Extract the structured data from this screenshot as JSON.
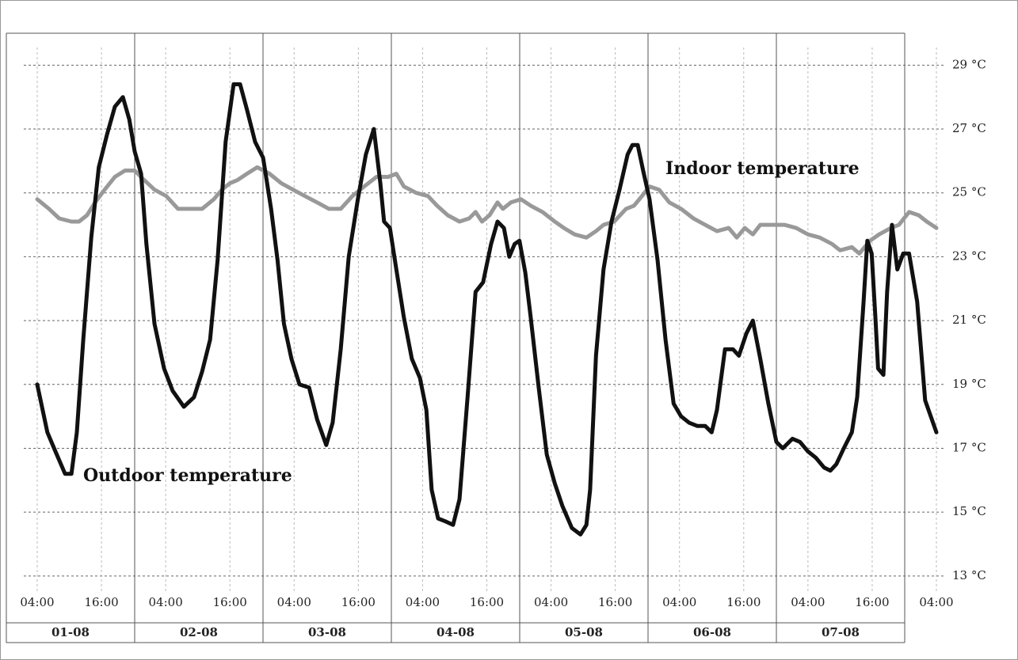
{
  "chart_data": {
    "type": "line",
    "xlim": [
      0,
      168
    ],
    "xticks": [
      {
        "value": 0,
        "label": "04:00"
      },
      {
        "value": 12,
        "label": "16:00"
      },
      {
        "value": 24,
        "label": "04:00"
      },
      {
        "value": 36,
        "label": "16:00"
      },
      {
        "value": 48,
        "label": "04:00"
      },
      {
        "value": 60,
        "label": "16:00"
      },
      {
        "value": 72,
        "label": "04:00"
      },
      {
        "value": 84,
        "label": "16:00"
      },
      {
        "value": 96,
        "label": "04:00"
      },
      {
        "value": 108,
        "label": "16:00"
      },
      {
        "value": 120,
        "label": "04:00"
      },
      {
        "value": 132,
        "label": "16:00"
      },
      {
        "value": 144,
        "label": "04:00"
      },
      {
        "value": 156,
        "label": "16:00"
      },
      {
        "value": 168,
        "label": "04:00"
      }
    ],
    "dates": [
      "01-08",
      "02-08",
      "03-08",
      "04-08",
      "05-08",
      "06-08",
      "07-08"
    ],
    "ylim": [
      12.5,
      30
    ],
    "yticks": [
      {
        "value": 13,
        "label": "13 °C"
      },
      {
        "value": 15,
        "label": "15 °C"
      },
      {
        "value": 17,
        "label": "17 °C"
      },
      {
        "value": 19,
        "label": "19 °C"
      },
      {
        "value": 21,
        "label": "21 °C"
      },
      {
        "value": 23,
        "label": "23 °C"
      },
      {
        "value": 25,
        "label": "25 °C"
      },
      {
        "value": 27,
        "label": "27 °C"
      },
      {
        "value": 29,
        "label": "29 °C"
      }
    ],
    "grid": true,
    "series": [
      {
        "name": "Outdoor temperature",
        "color": "#111111",
        "x": [
          0,
          1.9,
          3.4,
          5.2,
          6.4,
          7.4,
          8.6,
          10.1,
          11.5,
          13.0,
          14.5,
          16.0,
          17.2,
          18.2,
          19.4,
          20.4,
          21.9,
          23.7,
          25.3,
          27.4,
          29.3,
          30.8,
          32.3,
          33.7,
          35.2,
          36.7,
          37.9,
          39.2,
          40.7,
          42.2,
          43.7,
          44.9,
          46.1,
          47.5,
          49.0,
          50.8,
          52.3,
          54.0,
          55.2,
          56.7,
          58.2,
          59.9,
          61.4,
          62.9,
          64.1,
          64.8,
          65.9,
          67.1,
          68.5,
          70.0,
          71.5,
          72.7,
          73.7,
          74.9,
          76.4,
          77.7,
          78.9,
          80.4,
          81.9,
          83.3,
          84.8,
          86.0,
          87.2,
          88.2,
          89.2,
          90.1,
          91.2,
          92.2,
          93.7,
          95.2,
          96.7,
          98.1,
          99.9,
          101.5,
          102.6,
          103.3,
          104.4,
          105.8,
          107.3,
          108.8,
          110.3,
          111.2,
          112.2,
          113.2,
          114.4,
          115.9,
          117.4,
          118.9,
          120.3,
          121.8,
          123.3,
          124.8,
          126.0,
          127.0,
          128.5,
          130.0,
          131.1,
          132.5,
          133.7,
          135.1,
          136.6,
          138.1,
          139.3,
          141.1,
          142.5,
          144.0,
          145.5,
          147.0,
          148.2,
          149.3,
          150.7,
          152.2,
          153.2,
          154.4,
          155.1,
          155.9,
          156.6,
          157.1,
          158.1,
          158.8,
          159.7,
          160.7,
          161.8,
          162.9,
          164.4,
          165.9,
          168
        ],
        "values": [
          19.0,
          17.5,
          16.9,
          16.2,
          16.2,
          17.5,
          20.4,
          23.6,
          25.8,
          26.8,
          27.7,
          28.0,
          27.3,
          26.3,
          25.6,
          23.4,
          20.9,
          19.5,
          18.8,
          18.3,
          18.6,
          19.4,
          20.4,
          22.9,
          26.6,
          28.4,
          28.4,
          27.6,
          26.6,
          26.1,
          24.5,
          22.9,
          20.9,
          19.8,
          19.0,
          18.9,
          17.9,
          17.1,
          17.8,
          20.1,
          23.0,
          24.8,
          26.2,
          27.0,
          25.3,
          24.1,
          23.9,
          22.6,
          21.1,
          19.8,
          19.2,
          18.2,
          15.7,
          14.8,
          14.7,
          14.6,
          15.4,
          18.6,
          21.9,
          22.2,
          23.4,
          24.1,
          23.9,
          23.0,
          23.4,
          23.5,
          22.5,
          21.1,
          18.9,
          16.8,
          15.9,
          15.2,
          14.5,
          14.3,
          14.6,
          15.7,
          19.9,
          22.6,
          24.1,
          25.1,
          26.2,
          26.5,
          26.5,
          25.7,
          24.8,
          22.9,
          20.4,
          18.4,
          18.0,
          17.8,
          17.7,
          17.7,
          17.5,
          18.2,
          20.1,
          20.1,
          19.9,
          20.6,
          21.0,
          19.8,
          18.4,
          17.2,
          17.0,
          17.3,
          17.2,
          16.9,
          16.7,
          16.4,
          16.3,
          16.5,
          17.0,
          17.5,
          18.6,
          21.6,
          23.5,
          23.1,
          21.1,
          19.5,
          19.3,
          21.9,
          24.0,
          22.6,
          23.1,
          23.1,
          21.6,
          18.5,
          17.5
        ]
      },
      {
        "name": "Indoor temperature",
        "color": "#999999",
        "x": [
          0,
          2.2,
          4.1,
          6.4,
          7.8,
          9.3,
          10.8,
          12.6,
          14.5,
          16.4,
          18.2,
          20.0,
          21.9,
          24.1,
          26.3,
          28.6,
          30.8,
          33.0,
          34.5,
          36.0,
          37.4,
          39.2,
          41.1,
          43.4,
          45.6,
          47.8,
          50.0,
          52.3,
          54.5,
          56.7,
          58.9,
          61.1,
          63.4,
          65.6,
          67.1,
          68.5,
          70.8,
          73.0,
          74.7,
          76.7,
          78.9,
          80.7,
          81.9,
          83.1,
          84.5,
          86.0,
          87.0,
          88.5,
          90.4,
          92.2,
          94.4,
          96.7,
          98.4,
          100.4,
          102.6,
          104.4,
          105.8,
          107.8,
          110.0,
          111.5,
          113.0,
          114.4,
          116.2,
          118.1,
          120.3,
          122.6,
          124.8,
          127.0,
          129.2,
          130.7,
          132.2,
          133.7,
          135.1,
          137.4,
          139.6,
          141.8,
          144.0,
          146.2,
          148.5,
          150.0,
          152.2,
          153.6,
          155.6,
          157.3,
          159.5,
          161.0,
          162.9,
          164.7,
          166.2,
          168
        ],
        "values": [
          24.8,
          24.5,
          24.2,
          24.1,
          24.1,
          24.3,
          24.7,
          25.1,
          25.5,
          25.7,
          25.7,
          25.4,
          25.1,
          24.9,
          24.5,
          24.5,
          24.5,
          24.8,
          25.1,
          25.3,
          25.4,
          25.6,
          25.8,
          25.6,
          25.3,
          25.1,
          24.9,
          24.7,
          24.5,
          24.5,
          24.9,
          25.2,
          25.5,
          25.5,
          25.6,
          25.2,
          25.0,
          24.9,
          24.6,
          24.3,
          24.1,
          24.2,
          24.4,
          24.1,
          24.3,
          24.7,
          24.5,
          24.7,
          24.8,
          24.6,
          24.4,
          24.1,
          23.9,
          23.7,
          23.6,
          23.8,
          24.0,
          24.1,
          24.5,
          24.6,
          24.9,
          25.2,
          25.1,
          24.7,
          24.5,
          24.2,
          24.0,
          23.8,
          23.9,
          23.6,
          23.9,
          23.7,
          24.0,
          24.0,
          24.0,
          23.9,
          23.7,
          23.6,
          23.4,
          23.2,
          23.3,
          23.1,
          23.5,
          23.7,
          23.9,
          24.0,
          24.4,
          24.3,
          24.1,
          23.9
        ]
      }
    ]
  }
}
